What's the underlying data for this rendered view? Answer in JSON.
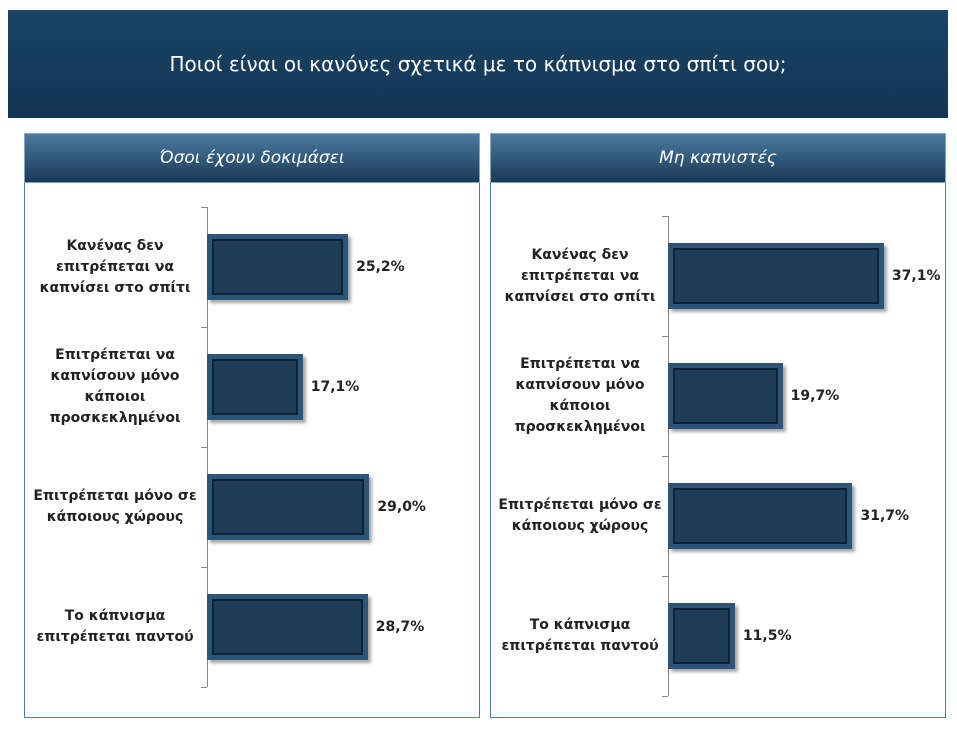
{
  "title": "Ποιοί είναι οι κανόνες σχετικά με το κάπνισμα στο σπίτι σου;",
  "chart_data": [
    {
      "type": "bar",
      "orientation": "horizontal",
      "title": "Όσοι έχουν δοκιμάσει",
      "categories": [
        "Κανένας δεν επιτρέπεται να καπνίσει στο σπίτι",
        "Επιτρέπεται να καπνίσουν μόνο κάποιοι προσκεκλημένοι",
        "Επιτρέπεται μόνο σε κάποιους χώρους",
        "Το κάπνισμα επιτρέπεται παντού"
      ],
      "values": [
        25.2,
        17.1,
        29.0,
        28.7
      ],
      "value_labels": [
        "25,2%",
        "17,1%",
        "29,0%",
        "28,7%"
      ],
      "color": "#1f3d58"
    },
    {
      "type": "bar",
      "orientation": "horizontal",
      "title": "Μη καπνιστές",
      "categories": [
        "Κανένας δεν επιτρέπεται να καπνίσει στο σπίτι",
        "Επιτρέπεται να καπνίσουν μόνο κάποιοι προσκεκλημένοι",
        "Επιτρέπεται μόνο σε κάποιους χώρους",
        "Το κάπνισμα επιτρέπεται παντού"
      ],
      "values": [
        37.1,
        19.7,
        31.7,
        11.5
      ],
      "value_labels": [
        "37,1%",
        "19,7%",
        "31,7%",
        "11,5%"
      ],
      "color": "#1f3d58"
    }
  ]
}
